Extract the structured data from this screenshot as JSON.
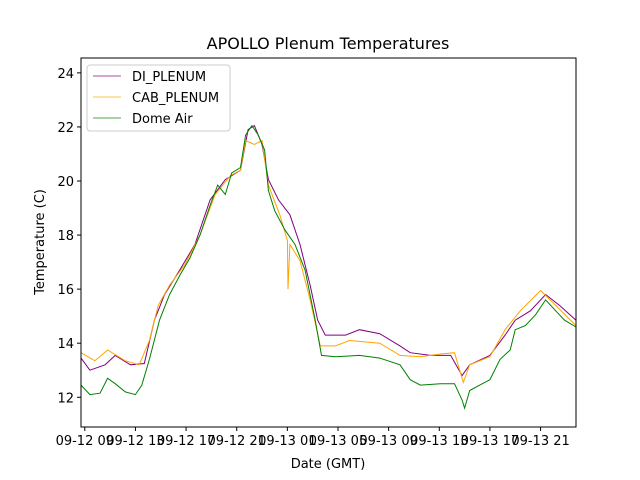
{
  "chart_data": {
    "type": "line",
    "title": "APOLLO Plenum Temperatures",
    "xlabel": "Date (GMT)",
    "ylabel": "Temperature (C)",
    "x_units": "hours since 09-12 09:00 GMT",
    "xlim": [
      -0.3,
      38.8
    ],
    "ylim": [
      10.9,
      24.55
    ],
    "x_ticks": [
      0,
      4,
      8,
      12,
      16,
      20,
      24,
      28,
      32,
      36
    ],
    "x_tick_labels": [
      "09-12 09",
      "09-12 13",
      "09-12 17",
      "09-12 21",
      "09-13 01",
      "09-13 05",
      "09-13 09",
      "09-13 13",
      "09-13 17",
      "09-13 21"
    ],
    "y_ticks": [
      12,
      14,
      16,
      18,
      20,
      22,
      24
    ],
    "y_tick_labels": [
      "12",
      "14",
      "16",
      "18",
      "20",
      "22",
      "24"
    ],
    "grid": false,
    "legend_position": "top-left",
    "series": [
      {
        "name": "DI_PLENUM",
        "color": "#800080",
        "points": [
          [
            -0.3,
            13.45
          ],
          [
            0.4,
            13.0
          ],
          [
            1.6,
            13.2
          ],
          [
            2.4,
            13.55
          ],
          [
            3.6,
            13.2
          ],
          [
            4.7,
            13.25
          ],
          [
            5.5,
            14.85
          ],
          [
            6.3,
            15.8
          ],
          [
            7.5,
            16.7
          ],
          [
            8.7,
            17.65
          ],
          [
            9.9,
            19.3
          ],
          [
            11.1,
            20.05
          ],
          [
            12.3,
            20.4
          ],
          [
            12.9,
            21.9
          ],
          [
            13.4,
            22.05
          ],
          [
            14.0,
            21.35
          ],
          [
            14.5,
            20.05
          ],
          [
            15.3,
            19.3
          ],
          [
            16.2,
            18.75
          ],
          [
            17.0,
            17.65
          ],
          [
            17.8,
            16.15
          ],
          [
            18.4,
            14.85
          ],
          [
            19.0,
            14.3
          ],
          [
            20.6,
            14.3
          ],
          [
            21.7,
            14.5
          ],
          [
            23.3,
            14.35
          ],
          [
            24.9,
            13.9
          ],
          [
            25.7,
            13.65
          ],
          [
            27.3,
            13.55
          ],
          [
            28.9,
            13.55
          ],
          [
            29.8,
            12.8
          ],
          [
            30.4,
            13.2
          ],
          [
            32.0,
            13.55
          ],
          [
            33.2,
            14.3
          ],
          [
            34.0,
            14.85
          ],
          [
            35.2,
            15.2
          ],
          [
            36.4,
            15.8
          ],
          [
            37.5,
            15.4
          ],
          [
            38.8,
            14.85
          ]
        ]
      },
      {
        "name": "CAB_PLENUM",
        "color": "#ffa500",
        "points": [
          [
            -0.3,
            13.65
          ],
          [
            0.8,
            13.35
          ],
          [
            1.8,
            13.75
          ],
          [
            3.2,
            13.35
          ],
          [
            4.3,
            13.2
          ],
          [
            5.1,
            14.1
          ],
          [
            5.8,
            15.4
          ],
          [
            6.7,
            16.15
          ],
          [
            7.9,
            16.9
          ],
          [
            9.1,
            18.0
          ],
          [
            10.3,
            19.5
          ],
          [
            11.5,
            20.2
          ],
          [
            12.3,
            20.4
          ],
          [
            12.7,
            21.5
          ],
          [
            13.4,
            21.35
          ],
          [
            14.0,
            21.5
          ],
          [
            14.5,
            19.85
          ],
          [
            15.4,
            18.75
          ],
          [
            16.0,
            17.8
          ],
          [
            16.05,
            16.0
          ],
          [
            16.2,
            17.65
          ],
          [
            17.0,
            17.05
          ],
          [
            17.8,
            15.6
          ],
          [
            18.6,
            13.9
          ],
          [
            19.8,
            13.9
          ],
          [
            20.9,
            14.1
          ],
          [
            23.3,
            14.0
          ],
          [
            24.9,
            13.55
          ],
          [
            26.5,
            13.5
          ],
          [
            28.1,
            13.6
          ],
          [
            29.2,
            13.65
          ],
          [
            29.9,
            12.55
          ],
          [
            30.4,
            13.2
          ],
          [
            32.0,
            13.5
          ],
          [
            33.2,
            14.5
          ],
          [
            34.4,
            15.2
          ],
          [
            36.0,
            15.95
          ],
          [
            37.2,
            15.4
          ],
          [
            38.8,
            14.65
          ]
        ]
      },
      {
        "name": "Dome Air",
        "color": "#008000",
        "points": [
          [
            -0.3,
            12.45
          ],
          [
            0.4,
            12.1
          ],
          [
            1.2,
            12.15
          ],
          [
            1.8,
            12.7
          ],
          [
            2.4,
            12.5
          ],
          [
            3.2,
            12.2
          ],
          [
            4.0,
            12.1
          ],
          [
            4.5,
            12.45
          ],
          [
            5.1,
            13.4
          ],
          [
            5.9,
            14.85
          ],
          [
            6.7,
            15.8
          ],
          [
            7.5,
            16.5
          ],
          [
            8.3,
            17.15
          ],
          [
            9.1,
            18.0
          ],
          [
            9.9,
            19.1
          ],
          [
            10.5,
            19.85
          ],
          [
            11.1,
            19.5
          ],
          [
            11.6,
            20.3
          ],
          [
            12.3,
            20.5
          ],
          [
            12.7,
            21.7
          ],
          [
            13.2,
            22.05
          ],
          [
            13.7,
            21.7
          ],
          [
            14.2,
            21.15
          ],
          [
            14.5,
            19.65
          ],
          [
            15.0,
            18.9
          ],
          [
            15.8,
            18.2
          ],
          [
            16.6,
            17.65
          ],
          [
            17.4,
            16.7
          ],
          [
            18.2,
            14.85
          ],
          [
            18.7,
            13.55
          ],
          [
            19.8,
            13.5
          ],
          [
            21.7,
            13.55
          ],
          [
            23.3,
            13.45
          ],
          [
            24.9,
            13.2
          ],
          [
            25.7,
            12.65
          ],
          [
            26.5,
            12.45
          ],
          [
            28.1,
            12.5
          ],
          [
            29.2,
            12.5
          ],
          [
            29.8,
            11.9
          ],
          [
            30.0,
            11.6
          ],
          [
            30.4,
            12.25
          ],
          [
            31.2,
            12.45
          ],
          [
            32.0,
            12.65
          ],
          [
            32.8,
            13.4
          ],
          [
            33.6,
            13.75
          ],
          [
            34.0,
            14.5
          ],
          [
            34.8,
            14.65
          ],
          [
            35.6,
            15.05
          ],
          [
            36.4,
            15.6
          ],
          [
            37.2,
            15.2
          ],
          [
            37.9,
            14.85
          ],
          [
            38.8,
            14.6
          ]
        ]
      }
    ]
  }
}
